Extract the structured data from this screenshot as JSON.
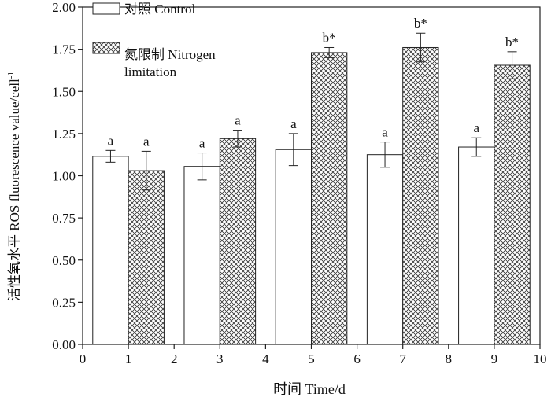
{
  "chart_data": {
    "type": "bar",
    "title": "",
    "xlabel": "时间 Time/d",
    "ylabel": "活性氧水平 ROS fluorescence value/cell",
    "ylabel_sup": "-1",
    "xlim": [
      0,
      10
    ],
    "ylim": [
      0,
      2.0
    ],
    "x_ticks": [
      "0",
      "1",
      "2",
      "3",
      "4",
      "5",
      "6",
      "7",
      "8",
      "9",
      "10"
    ],
    "y_ticks": [
      "0.00",
      "0.25",
      "0.50",
      "0.75",
      "1.00",
      "1.25",
      "1.50",
      "1.75",
      "2.00"
    ],
    "legend_position": "top-left",
    "series": [
      {
        "name": "对照 Control",
        "pattern": "plain",
        "color": "#ffffff",
        "x": [
          1,
          3,
          5,
          7,
          9
        ],
        "values": [
          1.115,
          1.055,
          1.155,
          1.125,
          1.17
        ],
        "errors": [
          0.035,
          0.08,
          0.095,
          0.075,
          0.055
        ],
        "labels": [
          "a",
          "a",
          "a",
          "a",
          "a"
        ]
      },
      {
        "name": "氮限制 Nitrogen limitation",
        "legend_lines": [
          "氮限制 Nitrogen",
          "limitation"
        ],
        "pattern": "crosshatch",
        "color": "#ffffff",
        "x": [
          1,
          3,
          5,
          7,
          9
        ],
        "values": [
          1.03,
          1.22,
          1.73,
          1.76,
          1.655
        ],
        "errors": [
          0.115,
          0.05,
          0.03,
          0.085,
          0.08
        ],
        "labels": [
          "a",
          "a",
          "b*",
          "b*",
          "b*"
        ]
      }
    ]
  }
}
